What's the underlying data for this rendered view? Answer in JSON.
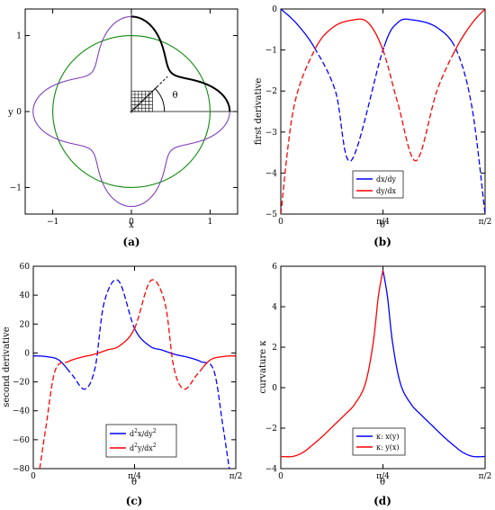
{
  "chart_data": [
    {
      "panel": "(a)",
      "type": "line",
      "xlabel": "x",
      "ylabel": "y",
      "xlim": [
        -1.35,
        1.35
      ],
      "ylim": [
        -1.35,
        1.35
      ],
      "xticks": [
        {
          "v": -1,
          "label": "−1"
        },
        {
          "v": 0,
          "label": "0"
        },
        {
          "v": 1,
          "label": "1"
        }
      ],
      "yticks": [
        {
          "v": -1,
          "label": "−1"
        },
        {
          "v": 0,
          "label": "0"
        },
        {
          "v": 1,
          "label": "1"
        }
      ],
      "angle_label": "θ",
      "shapes": {
        "unit_circle_radius": 1.0,
        "superellipse_r_at_axes": 1.25,
        "superellipse_r_at_diagonal": 0.72
      },
      "colors": {
        "circle": "#0a8a0a",
        "curve": "#7f3fbf",
        "highlight": "#000000"
      }
    },
    {
      "panel": "(b)",
      "type": "line",
      "xlabel": "θ",
      "ylabel": "first derivative",
      "xlim": [
        0,
        1.5708
      ],
      "ylim": [
        -5,
        0
      ],
      "xticks": [
        {
          "v": 0,
          "label": "0"
        },
        {
          "v": 0.7854,
          "label": "π/4"
        },
        {
          "v": 1.5708,
          "label": "π/2"
        }
      ],
      "yticks": [
        {
          "v": 0,
          "label": "0"
        },
        {
          "v": -1,
          "label": "−1"
        },
        {
          "v": -2,
          "label": "−2"
        },
        {
          "v": -3,
          "label": "−3"
        },
        {
          "v": -4,
          "label": "−4"
        },
        {
          "v": -5,
          "label": "−5"
        }
      ],
      "legend_position": "bottom-right",
      "series": [
        {
          "name": "dx/dy",
          "color": "#0000ff",
          "x": [
            0,
            0.12,
            0.26,
            0.42,
            0.54,
            0.7854,
            0.9,
            1.02,
            1.2,
            1.35,
            1.47,
            1.5708
          ],
          "y": [
            0,
            -0.35,
            -0.95,
            -2.0,
            -3.7,
            -1.0,
            -0.33,
            -0.27,
            -0.45,
            -1.0,
            -2.4,
            -5.0
          ],
          "dashed_from": 0.26,
          "dashed_to": 0.7854,
          "dashed_from2": 1.31,
          "dashed_to2": 1.5708
        },
        {
          "name": "dy/dx",
          "color": "#ff0000",
          "x": [
            0,
            0.1,
            0.26,
            0.4,
            0.55,
            0.67,
            0.7854,
            0.9,
            1.04,
            1.2,
            1.35,
            1.47,
            1.5708
          ],
          "y": [
            -5.0,
            -2.4,
            -1.0,
            -0.45,
            -0.27,
            -0.33,
            -1.0,
            -2.3,
            -3.7,
            -2.0,
            -0.95,
            -0.35,
            0
          ],
          "dashed_from": 0,
          "dashed_to": 0.26,
          "dashed_from2": 0.7854,
          "dashed_to2": 1.31
        }
      ]
    },
    {
      "panel": "(c)",
      "type": "line",
      "xlabel": "θ",
      "ylabel": "second derivative",
      "xlim": [
        0,
        1.5708
      ],
      "ylim": [
        -80,
        60
      ],
      "xticks": [
        {
          "v": 0,
          "label": "0"
        },
        {
          "v": 0.7854,
          "label": "π/4"
        },
        {
          "v": 1.5708,
          "label": "π/2"
        }
      ],
      "yticks": [
        {
          "v": 60,
          "label": "60"
        },
        {
          "v": 40,
          "label": "40"
        },
        {
          "v": 20,
          "label": "20"
        },
        {
          "v": 0,
          "label": "0"
        },
        {
          "v": -20,
          "label": "−20"
        },
        {
          "v": -40,
          "label": "−40"
        },
        {
          "v": -60,
          "label": "−60"
        },
        {
          "v": -80,
          "label": "−80"
        }
      ],
      "legend_position": "bottom-right",
      "series": [
        {
          "name": "d²x/dy²",
          "legend_base": "d",
          "legend_sup1": "2",
          "legend_mid": "x/dy",
          "legend_sup2": "2",
          "color": "#0000ff",
          "x": [
            0,
            0.1,
            0.2,
            0.3,
            0.4,
            0.48,
            0.55,
            0.66,
            0.7854,
            0.9,
            1.0,
            1.1,
            1.2,
            1.3,
            1.4,
            1.47,
            1.52
          ],
          "y": [
            -2,
            -2.5,
            -5,
            -15,
            -25,
            -10,
            35,
            50,
            17,
            5,
            2,
            -1,
            -3,
            -6,
            -12,
            -50,
            -80
          ],
          "dashed_from": 0.26,
          "dashed_to": 0.7854,
          "dashed_from2": 1.31,
          "dashed_to2": 1.5708
        },
        {
          "name": "d²y/dx²",
          "legend_base": "d",
          "legend_sup1": "2",
          "legend_mid": "y/dx",
          "legend_sup2": "2",
          "color": "#ff0000",
          "x": [
            0.05,
            0.1,
            0.17,
            0.27,
            0.37,
            0.47,
            0.57,
            0.67,
            0.7854,
            0.91,
            1.02,
            1.09,
            1.17,
            1.27,
            1.37,
            1.47,
            1.5708
          ],
          "y": [
            -80,
            -50,
            -12,
            -6,
            -3,
            -1,
            2,
            5,
            17,
            50,
            35,
            -10,
            -25,
            -15,
            -5,
            -2.5,
            -2
          ],
          "dashed_from": 0,
          "dashed_to": 0.26,
          "dashed_from2": 0.7854,
          "dashed_to2": 1.31
        }
      ]
    },
    {
      "panel": "(d)",
      "type": "line",
      "xlabel": "θ",
      "ylabel": "curvature κ",
      "xlim": [
        0,
        1.5708
      ],
      "ylim": [
        -4,
        6
      ],
      "xticks": [
        {
          "v": 0,
          "label": "0"
        },
        {
          "v": 0.7854,
          "label": "π/4"
        },
        {
          "v": 1.5708,
          "label": "π/2"
        }
      ],
      "yticks": [
        {
          "v": 6,
          "label": "6"
        },
        {
          "v": 4,
          "label": "4"
        },
        {
          "v": 2,
          "label": "2"
        },
        {
          "v": 0,
          "label": "0"
        },
        {
          "v": -2,
          "label": "−2"
        },
        {
          "v": -4,
          "label": "−4"
        }
      ],
      "legend_position": "bottom-right",
      "series": [
        {
          "name": "κ: x(y)",
          "color": "#0000ff",
          "x": [
            0.7854,
            0.82,
            0.86,
            0.92,
            1.0,
            1.08,
            1.16,
            1.24,
            1.32,
            1.4,
            1.48,
            1.5708
          ],
          "y": [
            5.8,
            4.5,
            2.2,
            0.2,
            -0.8,
            -1.35,
            -1.85,
            -2.35,
            -2.8,
            -3.2,
            -3.4,
            -3.4
          ]
        },
        {
          "name": "κ: y(x)",
          "color": "#ff0000",
          "x": [
            0,
            0.09,
            0.17,
            0.25,
            0.33,
            0.41,
            0.49,
            0.57,
            0.65,
            0.71,
            0.75,
            0.7854
          ],
          "y": [
            -3.4,
            -3.4,
            -3.2,
            -2.8,
            -2.35,
            -1.85,
            -1.35,
            -0.8,
            0.2,
            2.2,
            4.5,
            5.8
          ]
        }
      ]
    }
  ]
}
